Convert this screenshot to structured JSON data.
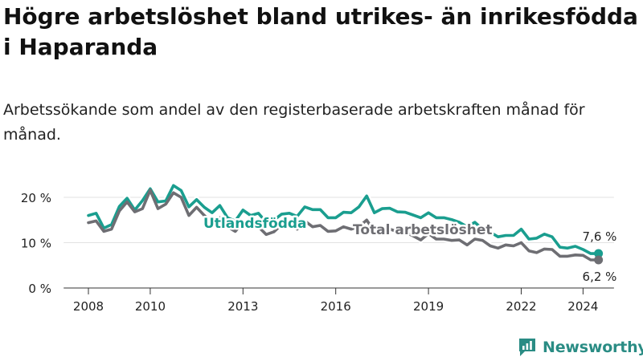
{
  "title": "Högre arbetslöshet bland utrikes- än inrikesfödda i Haparanda",
  "subtitle": "Arbetssökande som andel av den registerbaserade arbetskraften månad för månad.",
  "brand": {
    "name": "Newsworthy",
    "icon": "newsworthy-logo-icon",
    "color": "#2a8c84"
  },
  "chart_data": {
    "type": "line",
    "title": "",
    "xlabel": "",
    "ylabel": "",
    "ylim": [
      0,
      23
    ],
    "xlim": [
      2007.2,
      2025.0
    ],
    "grid": true,
    "legend": "inline labels",
    "y_ticks": [
      0,
      10,
      20
    ],
    "y_tick_labels": [
      "0 %",
      "10 %",
      "20 %"
    ],
    "x_ticks": [
      2008,
      2010,
      2013,
      2016,
      2019,
      2022,
      2024
    ],
    "x_tick_labels": [
      "2008",
      "2010",
      "2013",
      "2016",
      "2019",
      "2022",
      "2024"
    ],
    "series": [
      {
        "name": "Utlandsfödda",
        "color": "#1a9e8f",
        "x": [
          2008.0,
          2008.25,
          2008.5,
          2008.75,
          2009.0,
          2009.25,
          2009.5,
          2009.75,
          2010.0,
          2010.25,
          2010.5,
          2010.75,
          2011.0,
          2011.25,
          2011.5,
          2011.75,
          2012.0,
          2012.25,
          2012.5,
          2012.75,
          2013.0,
          2013.25,
          2013.5,
          2013.75,
          2014.0,
          2014.25,
          2014.5,
          2014.75,
          2015.0,
          2015.25,
          2015.5,
          2015.75,
          2016.0,
          2016.25,
          2016.5,
          2016.75,
          2017.0,
          2017.25,
          2017.5,
          2017.75,
          2018.0,
          2018.25,
          2018.5,
          2018.75,
          2019.0,
          2019.25,
          2019.5,
          2019.75,
          2020.0,
          2020.25,
          2020.5,
          2020.75,
          2021.0,
          2021.25,
          2021.5,
          2021.75,
          2022.0,
          2022.25,
          2022.5,
          2022.75,
          2023.0,
          2023.25,
          2023.5,
          2023.75,
          2024.0,
          2024.25,
          2024.5
        ],
        "values": [
          16.0,
          16.5,
          13.2,
          14.0,
          18.0,
          19.8,
          17.2,
          19.3,
          21.9,
          19.0,
          19.2,
          22.6,
          21.5,
          17.9,
          19.5,
          17.8,
          16.6,
          18.2,
          15.5,
          14.8,
          17.2,
          16.0,
          16.5,
          14.5,
          15.0,
          16.3,
          16.5,
          15.8,
          17.9,
          17.3,
          17.3,
          15.5,
          15.5,
          16.7,
          16.6,
          17.9,
          20.3,
          16.6,
          17.5,
          17.6,
          16.8,
          16.7,
          16.1,
          15.5,
          16.6,
          15.5,
          15.5,
          15.1,
          14.5,
          13.5,
          14.5,
          13.0,
          12.3,
          11.3,
          11.6,
          11.6,
          13.0,
          10.8,
          11.0,
          11.9,
          11.3,
          9.0,
          8.8,
          9.2,
          8.5,
          7.6,
          7.6
        ]
      },
      {
        "name": "Total arbetslöshet",
        "color": "#6e6e73",
        "x": [
          2008.0,
          2008.25,
          2008.5,
          2008.75,
          2009.0,
          2009.25,
          2009.5,
          2009.75,
          2010.0,
          2010.25,
          2010.5,
          2010.75,
          2011.0,
          2011.25,
          2011.5,
          2011.75,
          2012.0,
          2012.25,
          2012.5,
          2012.75,
          2013.0,
          2013.25,
          2013.5,
          2013.75,
          2014.0,
          2014.25,
          2014.5,
          2014.75,
          2015.0,
          2015.25,
          2015.5,
          2015.75,
          2016.0,
          2016.25,
          2016.5,
          2016.75,
          2017.0,
          2017.25,
          2017.5,
          2017.75,
          2018.0,
          2018.25,
          2018.5,
          2018.75,
          2019.0,
          2019.25,
          2019.5,
          2019.75,
          2020.0,
          2020.25,
          2020.5,
          2020.75,
          2021.0,
          2021.25,
          2021.5,
          2021.75,
          2022.0,
          2022.25,
          2022.5,
          2022.75,
          2023.0,
          2023.25,
          2023.5,
          2023.75,
          2024.0,
          2024.25,
          2024.5
        ],
        "values": [
          14.4,
          14.8,
          12.5,
          13.0,
          17.0,
          19.0,
          16.8,
          17.5,
          21.6,
          17.5,
          18.5,
          21.0,
          20.0,
          16.0,
          17.8,
          16.0,
          14.4,
          15.5,
          13.5,
          12.5,
          14.5,
          13.3,
          13.5,
          11.8,
          12.4,
          14.0,
          14.3,
          13.0,
          14.8,
          13.5,
          13.8,
          12.5,
          12.6,
          13.5,
          13.0,
          13.5,
          15.0,
          12.5,
          13.0,
          13.0,
          12.4,
          12.3,
          11.5,
          10.6,
          12.0,
          10.8,
          10.8,
          10.5,
          10.6,
          9.5,
          10.8,
          10.5,
          9.3,
          8.8,
          9.5,
          9.3,
          10.0,
          8.2,
          7.8,
          8.6,
          8.5,
          7.0,
          7.0,
          7.3,
          7.2,
          6.2,
          6.2
        ]
      }
    ],
    "annotations": [
      {
        "series": "Utlandsfödda",
        "text": "7,6 %"
      },
      {
        "series": "Total arbetslöshet",
        "text": "6,2 %"
      }
    ]
  }
}
